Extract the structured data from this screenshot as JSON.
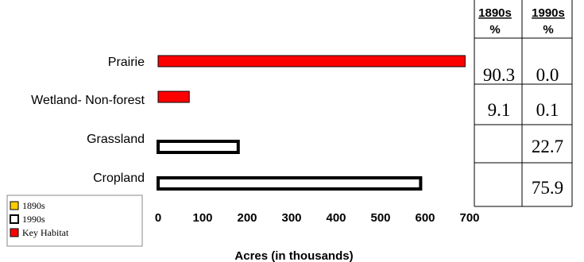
{
  "chart_data": {
    "type": "bar",
    "orientation": "horizontal",
    "categories": [
      "Prairie",
      "Wetland- Non-forest",
      "Grassland",
      "Cropland"
    ],
    "series": [
      {
        "name": "1890s",
        "color": "#ffcc00",
        "values": [
          null,
          null,
          0,
          0
        ]
      },
      {
        "name": "1990s",
        "color": "#ffffff",
        "values": [
          null,
          null,
          180,
          590
        ]
      },
      {
        "name": "Key Habitat",
        "color": "#ff0000",
        "values": [
          690,
          70,
          null,
          null
        ]
      }
    ],
    "xlabel": "Acres (in thousands)",
    "xlim": [
      0,
      700
    ],
    "xticks": [
      "0",
      "100",
      "200",
      "300",
      "400",
      "500",
      "600",
      "700"
    ],
    "grid": false,
    "legend_position": "bottom-left",
    "table": {
      "headers": [
        {
          "line1": "1890s",
          "line2": "%"
        },
        {
          "line1": "1990s",
          "line2": "%"
        }
      ],
      "rows": [
        [
          "90.3",
          "0.0"
        ],
        [
          "9.1",
          "0.1"
        ],
        [
          "",
          "22.7"
        ],
        [
          "",
          "75.9"
        ]
      ]
    }
  }
}
